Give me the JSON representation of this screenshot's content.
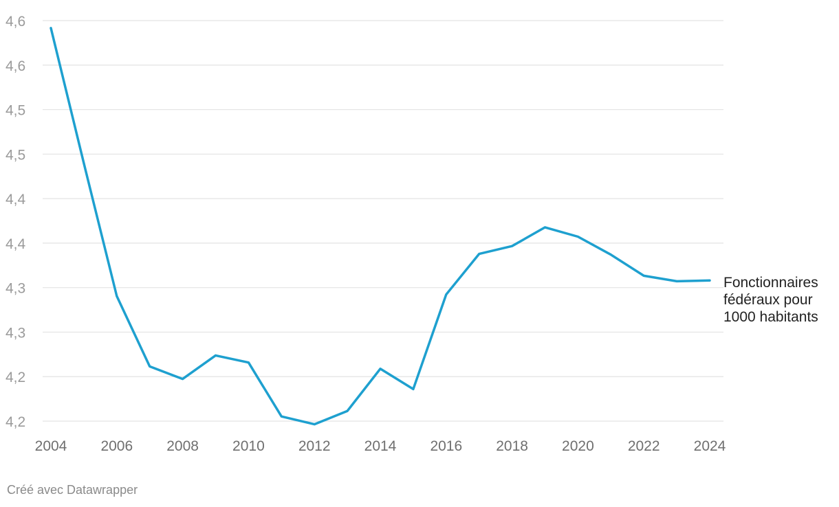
{
  "chart_data": {
    "type": "line",
    "x": [
      2004,
      2005,
      2006,
      2007,
      2008,
      2009,
      2010,
      2011,
      2012,
      2013,
      2014,
      2015,
      2016,
      2017,
      2018,
      2019,
      2020,
      2021,
      2022,
      2023,
      2024
    ],
    "series": [
      {
        "name": "Fonctionnaires fédéraux pour 1000 habitants",
        "color": "#1ea0cf",
        "values": [
          4.653,
          4.48,
          4.31,
          4.22,
          4.204,
          4.234,
          4.225,
          4.156,
          4.146,
          4.163,
          4.217,
          4.191,
          4.312,
          4.364,
          4.374,
          4.398,
          4.386,
          4.363,
          4.336,
          4.329,
          4.33
        ]
      }
    ],
    "x_ticks": [
      "2004",
      "2006",
      "2008",
      "2010",
      "2012",
      "2014",
      "2016",
      "2018",
      "2020",
      "2022",
      "2024"
    ],
    "y_ticks": [
      "4,6",
      "4,6",
      "4,5",
      "4,5",
      "4,4",
      "4,4",
      "4,3",
      "4,3",
      "4,2",
      "4,2"
    ],
    "ylim": [
      4.15,
      4.6625
    ],
    "grid": true,
    "legend": "inline-right"
  },
  "footer": "Créé avec Datawrapper"
}
